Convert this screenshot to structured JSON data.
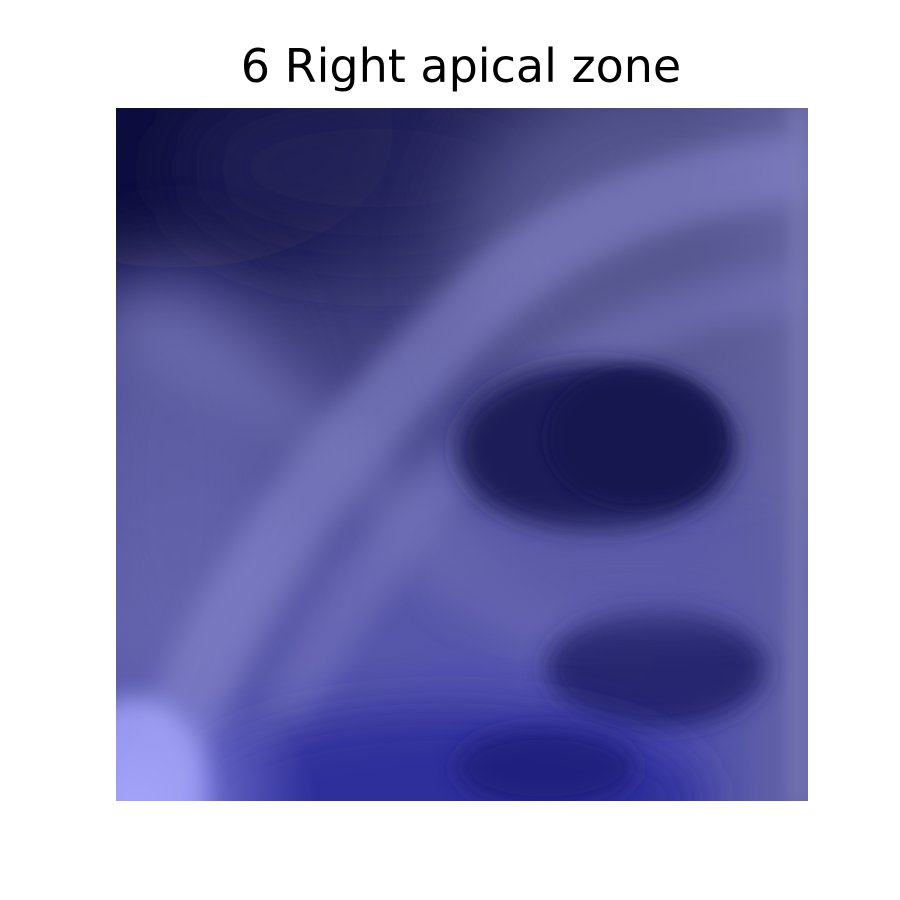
{
  "figure": {
    "title": "6 Right apical zone"
  },
  "image": {
    "colormap": "blue-tinted grayscale",
    "palette": {
      "darkest": "#0a0a3c",
      "dark": "#1e1e5a",
      "mid": "#4a4a8c",
      "light": "#7878c0",
      "lightest": "#a0a0f5",
      "deep_blue": "#2a2a9a"
    }
  }
}
